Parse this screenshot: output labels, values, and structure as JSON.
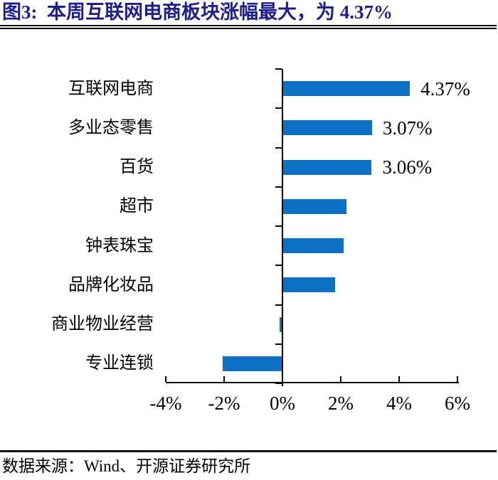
{
  "title": {
    "text": "图3:  本周互联网电商板块涨幅最大，为 4.37%"
  },
  "footer": {
    "source": "数据来源：Wind、开源证券研究所"
  },
  "colors": {
    "title_navy": "#1f1e8f",
    "bar_blue": "#0d72c6",
    "axis_black": "#000000",
    "text_black": "#000000"
  },
  "chart_data": {
    "type": "bar",
    "orientation": "horizontal",
    "title": "本周互联网电商板块涨幅最大，为 4.37%",
    "categories": [
      "互联网电商",
      "多业态零售",
      "百货",
      "超市",
      "钟表珠宝",
      "品牌化妆品",
      "商业物业经营",
      "专业连锁"
    ],
    "values": [
      4.37,
      3.07,
      3.06,
      2.2,
      2.1,
      1.8,
      -0.1,
      -2.05
    ],
    "value_labels": [
      "4.37%",
      "3.07%",
      "3.06%",
      "",
      "",
      "",
      "",
      ""
    ],
    "xlim": [
      -4,
      6
    ],
    "x_ticks": [
      -4,
      -2,
      0,
      2,
      4,
      6
    ],
    "x_tick_labels": [
      "-4%",
      "-2%",
      "0%",
      "2%",
      "4%",
      "6%"
    ],
    "xlabel": "",
    "ylabel": "",
    "grid": false,
    "legend": false,
    "bar_color": "#0d72c6"
  }
}
